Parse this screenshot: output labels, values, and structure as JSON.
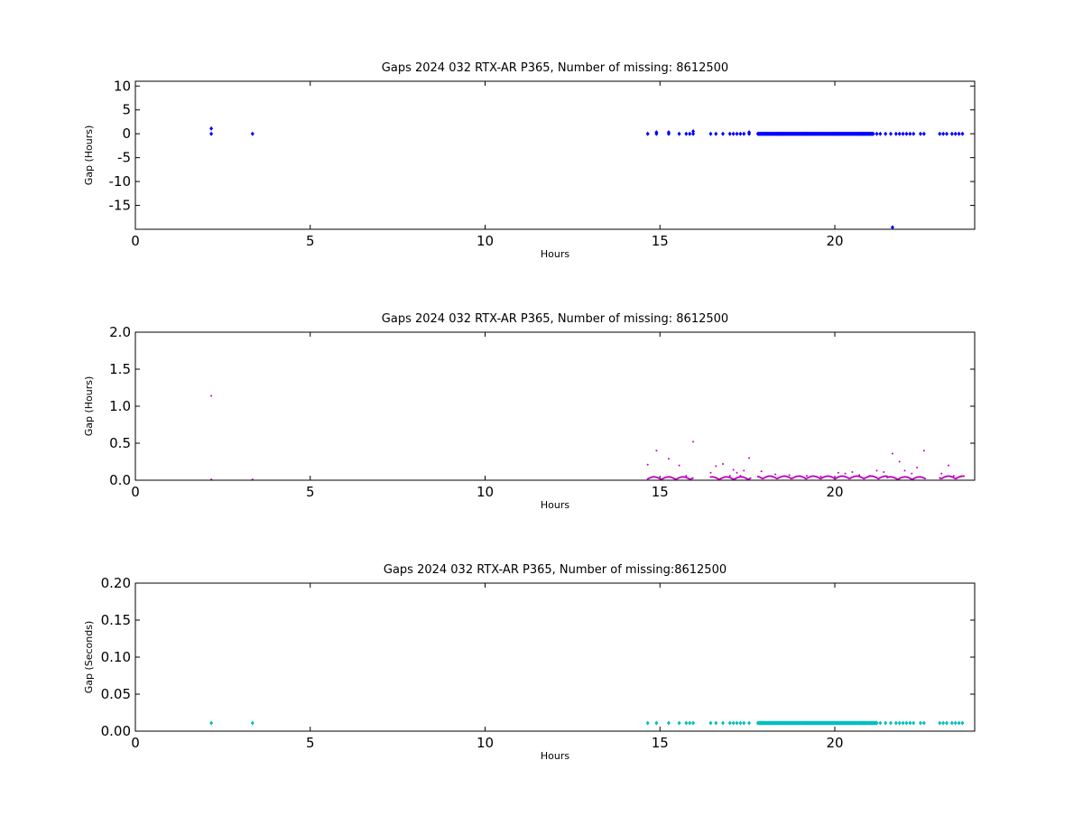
{
  "chart_data": [
    {
      "type": "scatter",
      "title": "Gaps 2024 032 RTX-AR  P365, Number of missing: 8612500",
      "xlabel": "Hours",
      "ylabel": "Gap (Hours)",
      "xlim": [
        0,
        24
      ],
      "ylim": [
        -20,
        11
      ],
      "xticks": [
        0,
        5,
        10,
        15,
        20
      ],
      "yticks": [
        10,
        5,
        0,
        -5,
        -10,
        -15
      ],
      "grid": false,
      "color": "#0000ff",
      "marker": "diamond",
      "points": [
        [
          2.17,
          0
        ],
        [
          2.17,
          1.1
        ],
        [
          3.35,
          0
        ],
        [
          14.65,
          0
        ],
        [
          14.9,
          0
        ],
        [
          14.9,
          0.3
        ],
        [
          15.25,
          0
        ],
        [
          15.25,
          0.3
        ],
        [
          15.55,
          0
        ],
        [
          15.75,
          0
        ],
        [
          15.85,
          0
        ],
        [
          15.95,
          0
        ],
        [
          15.95,
          0.5
        ],
        [
          16.45,
          0
        ],
        [
          16.6,
          0
        ],
        [
          16.8,
          0
        ],
        [
          17.0,
          0
        ],
        [
          17.1,
          0
        ],
        [
          17.2,
          0
        ],
        [
          17.3,
          0
        ],
        [
          17.4,
          0
        ],
        [
          17.55,
          0
        ],
        [
          17.55,
          0.3
        ],
        [
          21.2,
          0
        ],
        [
          21.3,
          0
        ],
        [
          21.45,
          0
        ],
        [
          21.6,
          0
        ],
        [
          21.75,
          0
        ],
        [
          21.85,
          0
        ],
        [
          21.95,
          0
        ],
        [
          22.05,
          0
        ],
        [
          22.15,
          0
        ],
        [
          22.25,
          0
        ],
        [
          22.45,
          0
        ],
        [
          22.55,
          0
        ],
        [
          23.0,
          0
        ],
        [
          23.1,
          0
        ],
        [
          23.2,
          0
        ],
        [
          23.35,
          0
        ],
        [
          23.45,
          0
        ],
        [
          23.55,
          0
        ],
        [
          23.65,
          0
        ],
        [
          21.65,
          -19.6
        ]
      ],
      "dense_ranges": [
        [
          17.8,
          21.1,
          0
        ]
      ]
    },
    {
      "type": "scatter",
      "title": "Gaps 2024 032 RTX-AR  P365, Number of missing: 8612500",
      "xlabel": "Hours",
      "ylabel": "Gap (Hours)",
      "xlim": [
        0,
        24
      ],
      "ylim": [
        0,
        2.0
      ],
      "xticks": [
        0,
        5,
        10,
        15,
        20
      ],
      "yticks": [
        "0.0",
        "0.5",
        "1.0",
        "1.5",
        "2.0"
      ],
      "grid": false,
      "color": "#bf00bf",
      "marker": "dot",
      "points": [
        [
          2.17,
          1.14
        ],
        [
          2.17,
          0.01
        ],
        [
          3.35,
          0.01
        ],
        [
          14.65,
          0.21
        ],
        [
          14.9,
          0.4
        ],
        [
          15.25,
          0.29
        ],
        [
          15.55,
          0.2
        ],
        [
          15.75,
          0.06
        ],
        [
          15.95,
          0.52
        ],
        [
          16.45,
          0.1
        ],
        [
          16.6,
          0.19
        ],
        [
          16.8,
          0.22
        ],
        [
          17.0,
          0.06
        ],
        [
          17.1,
          0.14
        ],
        [
          17.2,
          0.1
        ],
        [
          17.3,
          0.06
        ],
        [
          17.4,
          0.13
        ],
        [
          17.55,
          0.3
        ],
        [
          17.9,
          0.12
        ],
        [
          18.3,
          0.08
        ],
        [
          18.7,
          0.07
        ],
        [
          19.2,
          0.06
        ],
        [
          19.6,
          0.05
        ],
        [
          20.1,
          0.1
        ],
        [
          20.3,
          0.09
        ],
        [
          20.5,
          0.11
        ],
        [
          20.7,
          0.07
        ],
        [
          21.0,
          0.06
        ],
        [
          21.2,
          0.13
        ],
        [
          21.4,
          0.11
        ],
        [
          21.65,
          0.36
        ],
        [
          21.85,
          0.25
        ],
        [
          22.0,
          0.13
        ],
        [
          22.2,
          0.09
        ],
        [
          22.35,
          0.17
        ],
        [
          22.55,
          0.4
        ],
        [
          23.05,
          0.09
        ],
        [
          23.25,
          0.2
        ],
        [
          23.4,
          0.06
        ],
        [
          23.6,
          0.05
        ]
      ],
      "dense_ranges": [
        [
          14.65,
          15.95,
          0.01
        ],
        [
          16.45,
          17.6,
          0.01
        ],
        [
          17.8,
          21.5,
          0.02
        ],
        [
          21.5,
          22.6,
          0.01
        ],
        [
          23.0,
          23.7,
          0.02
        ]
      ]
    },
    {
      "type": "scatter",
      "title": "Gaps 2024 032 RTX-AR  P365, Number of missing:8612500",
      "xlabel": "Hours",
      "ylabel": "Gap (Seconds)",
      "xlim": [
        0,
        24
      ],
      "ylim": [
        0,
        0.2
      ],
      "xticks": [
        0,
        5,
        10,
        15,
        20
      ],
      "yticks": [
        "0.00",
        "0.05",
        "0.10",
        "0.15",
        "0.20"
      ],
      "grid": false,
      "color": "#00bfbf",
      "marker": "diamond",
      "points": [
        [
          2.17,
          0.011
        ],
        [
          3.35,
          0.011
        ],
        [
          14.65,
          0.011
        ],
        [
          14.9,
          0.011
        ],
        [
          15.25,
          0.011
        ],
        [
          15.55,
          0.011
        ],
        [
          15.75,
          0.011
        ],
        [
          15.85,
          0.011
        ],
        [
          15.95,
          0.011
        ],
        [
          16.45,
          0.011
        ],
        [
          16.6,
          0.011
        ],
        [
          16.8,
          0.011
        ],
        [
          17.0,
          0.011
        ],
        [
          17.1,
          0.011
        ],
        [
          17.2,
          0.011
        ],
        [
          17.3,
          0.011
        ],
        [
          17.4,
          0.011
        ],
        [
          17.55,
          0.011
        ],
        [
          21.3,
          0.011
        ],
        [
          21.45,
          0.011
        ],
        [
          21.6,
          0.011
        ],
        [
          21.75,
          0.011
        ],
        [
          21.85,
          0.011
        ],
        [
          21.95,
          0.011
        ],
        [
          22.05,
          0.011
        ],
        [
          22.15,
          0.011
        ],
        [
          22.25,
          0.011
        ],
        [
          22.45,
          0.011
        ],
        [
          22.55,
          0.011
        ],
        [
          23.0,
          0.011
        ],
        [
          23.1,
          0.011
        ],
        [
          23.2,
          0.011
        ],
        [
          23.35,
          0.011
        ],
        [
          23.45,
          0.011
        ],
        [
          23.55,
          0.011
        ],
        [
          23.65,
          0.011
        ]
      ],
      "dense_ranges": [
        [
          17.8,
          21.2,
          0.011
        ]
      ]
    }
  ]
}
